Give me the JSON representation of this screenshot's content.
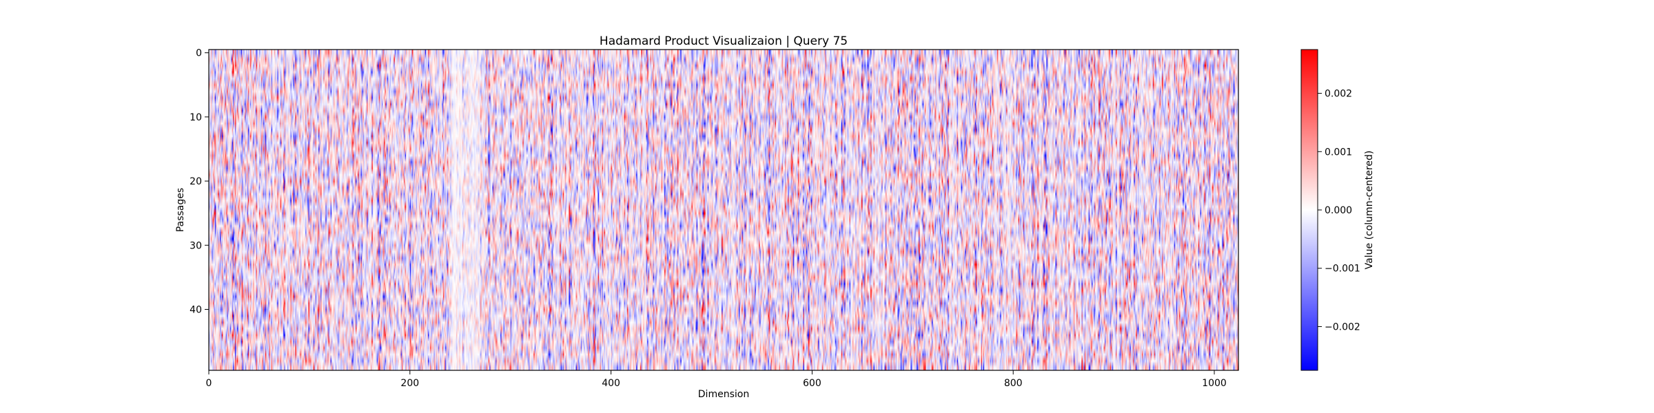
{
  "chart_data": {
    "type": "heatmap",
    "title": "Hadamard Product Visualizaion | Query 75",
    "xlabel": "Dimension",
    "ylabel": "Passages",
    "x_ticks": [
      0,
      200,
      400,
      600,
      800,
      1000
    ],
    "y_ticks": [
      0,
      10,
      20,
      30,
      40
    ],
    "x_range": [
      0,
      1024
    ],
    "y_range": [
      0,
      50
    ],
    "rows": 50,
    "columns": 1024,
    "colormap": "bwr",
    "color_min_color": "#0000ff",
    "color_mid_color": "#ffffff",
    "color_max_color": "#ff0000",
    "colorbar": {
      "label": "Value (column-centered)",
      "range": [
        -0.00275,
        0.00275
      ],
      "ticks": [
        0.002,
        0.001,
        0.0,
        -0.001,
        -0.002
      ],
      "tick_labels": [
        "0.002",
        "0.001",
        "0.000",
        "−0.001",
        "−0.002"
      ]
    },
    "grid": false,
    "legend": "colorbar-right"
  }
}
